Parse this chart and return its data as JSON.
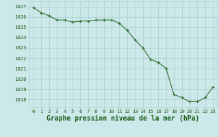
{
  "x": [
    0,
    1,
    2,
    3,
    4,
    5,
    6,
    7,
    8,
    9,
    10,
    11,
    12,
    13,
    14,
    15,
    16,
    17,
    18,
    19,
    20,
    21,
    22,
    23
  ],
  "y": [
    1026.9,
    1026.4,
    1026.1,
    1025.7,
    1025.7,
    1025.5,
    1025.6,
    1025.6,
    1025.7,
    1025.7,
    1025.7,
    1025.4,
    1024.7,
    1023.8,
    1023.0,
    1021.9,
    1021.6,
    1021.0,
    1018.5,
    1018.2,
    1017.8,
    1017.8,
    1018.2,
    1019.2
  ],
  "xlim": [
    -0.5,
    23.5
  ],
  "ylim": [
    1017.3,
    1027.5
  ],
  "yticks": [
    1018,
    1019,
    1020,
    1021,
    1022,
    1023,
    1024,
    1025,
    1026,
    1027
  ],
  "xticks": [
    0,
    1,
    2,
    3,
    4,
    5,
    6,
    7,
    8,
    9,
    10,
    11,
    12,
    13,
    14,
    15,
    16,
    17,
    18,
    19,
    20,
    21,
    22,
    23
  ],
  "xlabel": "Graphe pression niveau de la mer (hPa)",
  "line_color": "#2d6e2d",
  "marker": "+",
  "bg_color": "#cce8e8",
  "grid_color": "#aacece",
  "label_color": "#1a5c1a",
  "tick_label_color": "#1a5c1a",
  "xlabel_fontsize": 7.0,
  "tick_fontsize": 5.2,
  "linewidth": 0.8,
  "markersize": 3.5,
  "markeredgewidth": 0.9
}
